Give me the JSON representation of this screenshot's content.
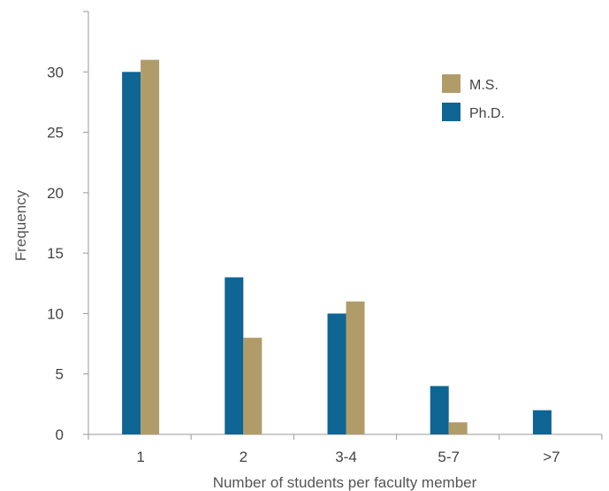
{
  "chart_data": {
    "type": "bar",
    "title": "",
    "xlabel": "Number of students per faculty member",
    "ylabel": "Frequency",
    "categories": [
      "1",
      "2",
      "3-4",
      "5-7",
      ">7"
    ],
    "series": [
      {
        "name": "Ph.D.",
        "values": [
          30,
          13,
          10,
          4,
          2
        ],
        "color": "#0f6594"
      },
      {
        "name": "M.S.",
        "values": [
          31,
          8,
          11,
          1,
          0
        ],
        "color": "#b09c68"
      }
    ],
    "ylim": [
      0,
      35
    ],
    "yticks": [
      0,
      5,
      10,
      15,
      20,
      25,
      30
    ],
    "grid": false,
    "legend": {
      "placement": "top-right",
      "order": [
        "M.S.",
        "Ph.D."
      ]
    },
    "axis_color": "#999999"
  }
}
